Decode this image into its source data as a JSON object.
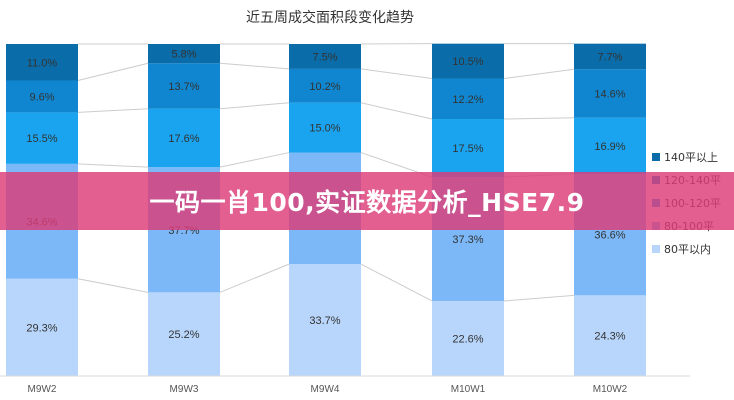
{
  "chart_data": {
    "type": "bar",
    "stacked": true,
    "title": "近五周成交面积段变化趋势",
    "categories": [
      "M9W2",
      "M9W3",
      "M9W4",
      "M10W1",
      "M10W2"
    ],
    "series": [
      {
        "name": "80平以内",
        "color": "#b8d6fb",
        "values": [
          29.3,
          25.2,
          33.7,
          22.6,
          24.3
        ]
      },
      {
        "name": "80-100平",
        "color": "#7cb8f7",
        "values": [
          34.6,
          37.7,
          33.6,
          37.3,
          36.6
        ]
      },
      {
        "name": "100-120平",
        "color": "#1aa3ee",
        "values": [
          15.5,
          17.6,
          15.0,
          17.5,
          16.9
        ]
      },
      {
        "name": "120-140平",
        "color": "#0f86cf",
        "values": [
          9.6,
          13.7,
          10.2,
          12.2,
          14.6
        ]
      },
      {
        "name": "140平以上",
        "color": "#0a6ca8",
        "values": [
          11.0,
          5.8,
          7.5,
          10.5,
          7.7
        ]
      }
    ],
    "labels": [
      [
        "29.3%",
        "25.2%",
        "33.7%",
        "22.6%",
        "24.3%"
      ],
      [
        "34.6%",
        "37.7%",
        "",
        "37.3%",
        "36.6%"
      ],
      [
        "15.5%",
        "17.6%",
        "15.0%",
        "17.5%",
        "16.9%"
      ],
      [
        "9.6%",
        "13.7%",
        "10.2%",
        "12.2%",
        "14.6%"
      ],
      [
        "11.0%",
        "5.8%",
        "7.5%",
        "10.5%",
        "7.7%"
      ]
    ],
    "legend_order": [
      4,
      3,
      2,
      1,
      0
    ],
    "legend_position": "right",
    "ylim": [
      0,
      100
    ],
    "grid": false
  },
  "overlay": {
    "text": "一码一肖100,实证数据分析_HSE7.9"
  }
}
